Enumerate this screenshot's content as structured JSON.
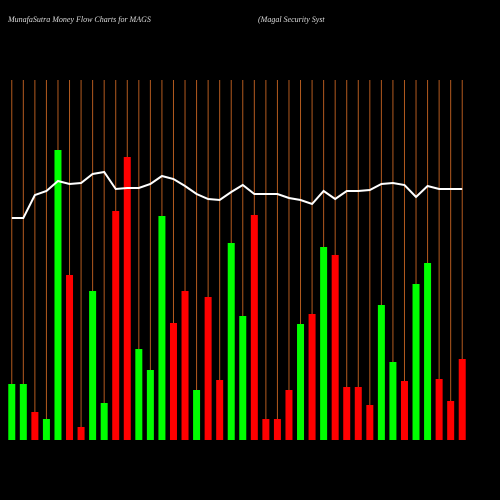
{
  "chart_data": {
    "type": "bar",
    "title": "MunafaSutra  Money Flow  Charts for MAGS",
    "subtitle": "(Magal Security Syst",
    "categories": [
      null,
      null,
      null,
      null,
      null,
      null,
      null,
      null,
      null,
      null,
      null,
      null,
      null,
      null,
      null,
      null,
      null,
      null,
      null,
      null,
      null,
      null,
      null,
      null,
      null,
      null,
      null,
      null,
      null,
      null,
      null,
      null,
      null,
      null,
      null,
      null,
      null,
      null,
      null,
      null
    ],
    "values": [
      56,
      56,
      28,
      21,
      290,
      165,
      13,
      149,
      37,
      229,
      283,
      91,
      70,
      224,
      117,
      149,
      50,
      143,
      60,
      197,
      124,
      225,
      21,
      21,
      50,
      116,
      126,
      193,
      185,
      53,
      53,
      35,
      135,
      78,
      59,
      156,
      177,
      61,
      39,
      81
    ],
    "bar_colors": [
      "#00ff00",
      "#00ff00",
      "#ff0000",
      "#00ff00",
      "#00ff00",
      "#ff0000",
      "#ff0000",
      "#00ff00",
      "#00ff00",
      "#ff0000",
      "#ff0000",
      "#00ff00",
      "#00ff00",
      "#00ff00",
      "#ff0000",
      "#ff0000",
      "#00ff00",
      "#ff0000",
      "#ff0000",
      "#00ff00",
      "#00ff00",
      "#ff0000",
      "#ff0000",
      "#ff0000",
      "#ff0000",
      "#00ff00",
      "#ff0000",
      "#00ff00",
      "#ff0000",
      "#ff0000",
      "#ff0000",
      "#ff0000",
      "#00ff00",
      "#00ff00",
      "#ff0000",
      "#00ff00",
      "#00ff00",
      "#ff0000",
      "#ff0000",
      "#ff0000"
    ],
    "line": {
      "color": "#ffffff",
      "values": [
        222,
        222,
        245,
        249,
        259,
        256,
        257,
        266,
        268,
        251,
        252,
        252,
        256,
        264,
        261,
        254,
        246,
        241,
        240,
        248,
        255,
        246,
        246,
        246,
        242,
        240,
        236,
        249,
        241,
        249,
        249,
        250,
        256,
        257,
        255,
        243,
        254,
        251,
        251,
        251
      ]
    },
    "grid_color": "#b35a1f",
    "ylim": [
      0,
      300
    ]
  }
}
